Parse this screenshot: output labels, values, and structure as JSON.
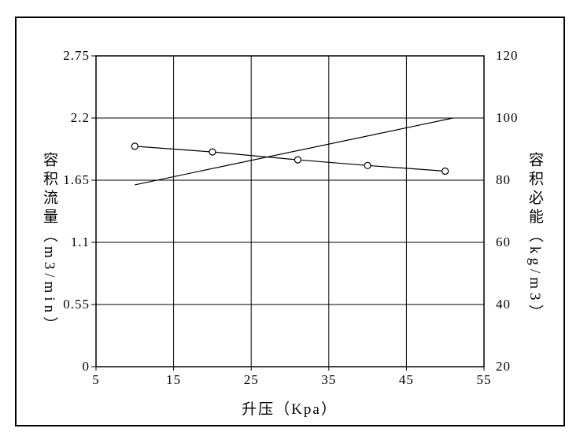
{
  "chart_data": {
    "type": "line",
    "title": "",
    "xlabel": "升压（Kpa）",
    "xlim": [
      5,
      55
    ],
    "x_ticks": [
      5,
      15,
      25,
      35,
      45,
      55
    ],
    "x_tick_labels": [
      "5",
      "15",
      "25",
      "35",
      "45",
      "55"
    ],
    "grid": true,
    "legend": "none",
    "left_axis": {
      "title": "容积流量（m3/min）",
      "lim": [
        0,
        2.75
      ],
      "ticks": [
        0,
        0.55,
        1.1,
        1.65,
        2.2,
        2.75
      ],
      "tick_labels": [
        "0",
        "0.55",
        "1.1",
        "1.65",
        "2.2",
        "2.75"
      ]
    },
    "right_axis": {
      "title": "容积必能（kg/m3）",
      "lim": [
        20,
        120
      ],
      "ticks": [
        20,
        40,
        60,
        80,
        100,
        120
      ],
      "tick_labels": [
        "20",
        "40",
        "60",
        "80",
        "100",
        "120"
      ]
    },
    "series": [
      {
        "name": "容积流量",
        "axis": "left",
        "marker": "circle",
        "points": [
          [
            10,
            1.95
          ],
          [
            20,
            1.9
          ],
          [
            31,
            1.83
          ],
          [
            40,
            1.78
          ],
          [
            50,
            1.73
          ]
        ]
      },
      {
        "name": "容积必能",
        "axis": "right",
        "marker": "none",
        "points": [
          [
            10,
            78.5
          ],
          [
            51,
            100
          ]
        ]
      }
    ],
    "colors": {
      "line": "#000000",
      "grid": "#000000",
      "border": "#000000",
      "background": "#ffffff",
      "marker_fill": "#ffffff"
    }
  }
}
